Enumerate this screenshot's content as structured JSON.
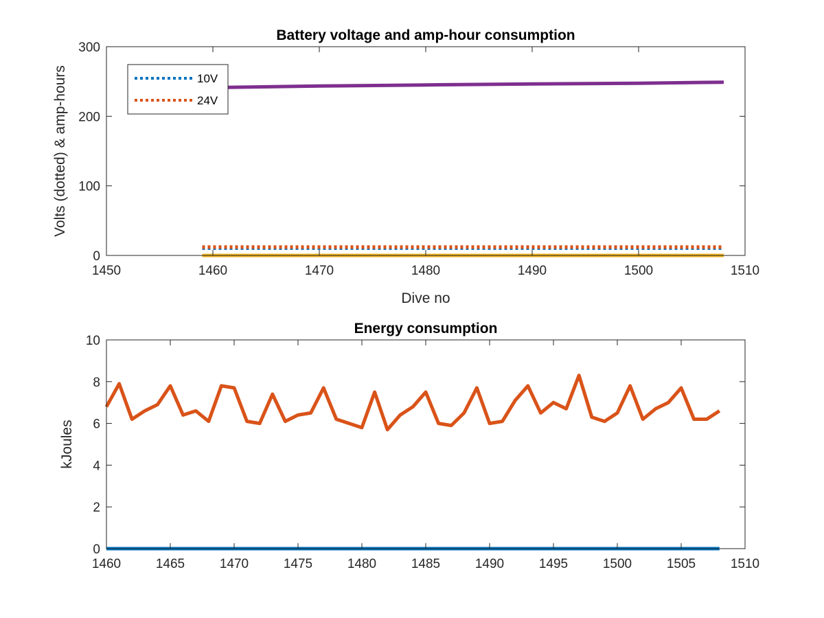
{
  "chart_data": [
    {
      "type": "line",
      "title": "Battery voltage and amp-hour consumption",
      "xlabel": "Dive no",
      "ylabel": "Volts (dotted) & amp-hours",
      "xlim": [
        1450,
        1510
      ],
      "ylim": [
        0,
        300
      ],
      "xticks": [
        1450,
        1460,
        1470,
        1480,
        1490,
        1500,
        1510
      ],
      "yticks": [
        0,
        100,
        200,
        300
      ],
      "grid": false,
      "legend_position": "top-left",
      "series": [
        {
          "name": "10V",
          "style": "dotted",
          "color": "#0072BD",
          "x": [
            1459,
            1508
          ],
          "y": [
            10.5,
            10.5
          ]
        },
        {
          "name": "24V",
          "style": "dotted",
          "color": "#D95319",
          "x": [
            1459,
            1508
          ],
          "y": [
            12,
            12
          ]
        },
        {
          "style": "solid",
          "color": "#EDB120",
          "x": [
            1459,
            1508
          ],
          "y": [
            0,
            0
          ]
        },
        {
          "style": "solid",
          "color": "#7E2F8E",
          "x": [
            1459,
            1470,
            1480,
            1490,
            1500,
            1508
          ],
          "y": [
            241,
            243.5,
            245,
            246.5,
            247.5,
            249
          ]
        }
      ]
    },
    {
      "type": "line",
      "title": "Energy consumption",
      "xlabel": "",
      "ylabel": "kJoules",
      "xlim": [
        1460,
        1510
      ],
      "ylim": [
        0,
        10
      ],
      "xticks": [
        1460,
        1465,
        1470,
        1475,
        1480,
        1485,
        1490,
        1495,
        1500,
        1505,
        1510
      ],
      "yticks": [
        0,
        2,
        4,
        6,
        8,
        10
      ],
      "grid": false,
      "series": [
        {
          "style": "solid",
          "color": "#D95319",
          "x": [
            1460,
            1461,
            1462,
            1463,
            1464,
            1465,
            1466,
            1467,
            1468,
            1469,
            1470,
            1471,
            1472,
            1473,
            1474,
            1475,
            1476,
            1477,
            1478,
            1479,
            1480,
            1481,
            1482,
            1483,
            1484,
            1485,
            1486,
            1487,
            1488,
            1489,
            1490,
            1491,
            1492,
            1493,
            1494,
            1495,
            1496,
            1497,
            1498,
            1499,
            1500,
            1501,
            1502,
            1503,
            1504,
            1505,
            1506,
            1507,
            1508
          ],
          "y": [
            6.8,
            7.9,
            6.2,
            6.6,
            6.9,
            7.8,
            6.4,
            6.6,
            6.1,
            7.8,
            7.7,
            6.1,
            6.0,
            7.4,
            6.1,
            6.4,
            6.5,
            7.7,
            6.2,
            6.0,
            5.8,
            7.5,
            5.7,
            6.4,
            6.8,
            7.5,
            6.0,
            5.9,
            6.5,
            7.7,
            6.0,
            6.1,
            7.1,
            7.8,
            6.5,
            7.0,
            6.7,
            8.3,
            6.3,
            6.1,
            6.5,
            7.8,
            6.2,
            6.7,
            7.0,
            7.7,
            6.2,
            6.2,
            6.6
          ]
        },
        {
          "style": "solid",
          "color": "#0072BD",
          "x": [
            1460,
            1508
          ],
          "y": [
            0,
            0
          ]
        }
      ]
    }
  ]
}
